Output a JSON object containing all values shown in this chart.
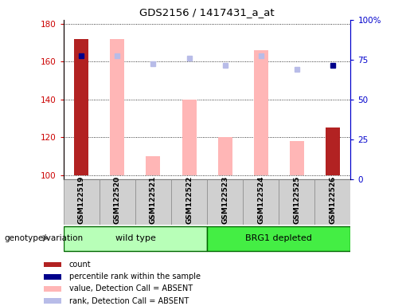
{
  "title": "GDS2156 / 1417431_a_at",
  "samples": [
    "GSM122519",
    "GSM122520",
    "GSM122521",
    "GSM122522",
    "GSM122523",
    "GSM122524",
    "GSM122525",
    "GSM122526"
  ],
  "group_labels": [
    "wild type",
    "BRG1 depleted"
  ],
  "ylim_left": [
    98,
    182
  ],
  "ylim_right": [
    0,
    100
  ],
  "yticks_left": [
    100,
    120,
    140,
    160,
    180
  ],
  "yticks_right": [
    0,
    25,
    50,
    75,
    100
  ],
  "ytick_labels_right": [
    "0",
    "25",
    "50",
    "75",
    "100%"
  ],
  "count_color": "#b22222",
  "rank_color": "#00008b",
  "absent_value_color": "#ffb6b6",
  "absent_rank_color": "#b8bce8",
  "bar_width": 0.4,
  "count_values": [
    172,
    null,
    null,
    null,
    null,
    null,
    null,
    125
  ],
  "rank_values": [
    163,
    null,
    null,
    null,
    null,
    null,
    null,
    158
  ],
  "absent_value_values": [
    null,
    172,
    110,
    140,
    120,
    166,
    118,
    null
  ],
  "absent_rank_values": [
    null,
    163,
    159,
    162,
    158,
    163,
    156,
    null
  ],
  "axis_color_left": "#cc0000",
  "axis_color_right": "#0000cc",
  "legend_items": [
    {
      "label": "count",
      "color": "#b22222"
    },
    {
      "label": "percentile rank within the sample",
      "color": "#00008b"
    },
    {
      "label": "value, Detection Call = ABSENT",
      "color": "#ffb6b6"
    },
    {
      "label": "rank, Detection Call = ABSENT",
      "color": "#b8bce8"
    }
  ],
  "xlabel_label": "genotype/variation",
  "wild_type_color": "#b8ffb8",
  "brg1_color": "#44ee44",
  "group_border_color": "#006600",
  "sample_box_color": "#d0d0d0",
  "sample_box_border": "#888888"
}
